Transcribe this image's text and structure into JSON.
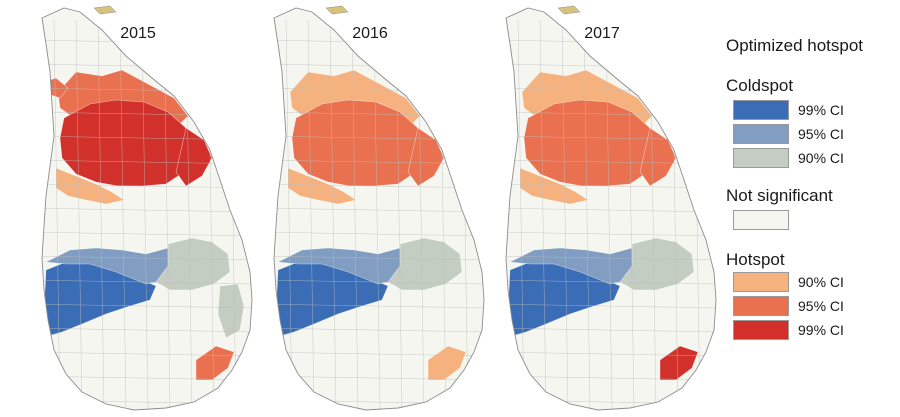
{
  "maps": [
    {
      "year": "2015",
      "regions": {
        "north_band": "hot95",
        "north_core": "hot99",
        "north_east": "hot99",
        "north_fringe": "hot90",
        "west_edge": "hot95",
        "central_west": "cold99",
        "central_mid": "cold95",
        "central_east": "cold90",
        "east_coast": "cold90",
        "southeast": "hot95"
      }
    },
    {
      "year": "2016",
      "regions": {
        "north_band": "hot90",
        "north_core": "hot95",
        "north_east": "hot95",
        "north_fringe": "hot90",
        "west_edge": "none",
        "central_west": "cold99",
        "central_mid": "cold95",
        "central_east": "cold90",
        "east_coast": "none",
        "southeast": "hot90"
      }
    },
    {
      "year": "2017",
      "regions": {
        "north_band": "hot90",
        "north_core": "hot95",
        "north_east": "hot95",
        "north_fringe": "hot90",
        "west_edge": "none",
        "central_west": "cold99",
        "central_mid": "cold95",
        "central_east": "cold90",
        "east_coast": "none",
        "southeast": "hot99"
      }
    }
  ],
  "legend": {
    "title": "Optimized hotspot",
    "coldspot": {
      "label": "Coldspot",
      "items": [
        {
          "key": "cold99",
          "label": "99% CI",
          "color": "#3a6db6"
        },
        {
          "key": "cold95",
          "label": "95% CI",
          "color": "#819dc1"
        },
        {
          "key": "cold90",
          "label": "90% CI",
          "color": "#c3cdc2"
        }
      ]
    },
    "not_significant": {
      "label": "Not significant",
      "key": "none",
      "color": "#f6f6f1"
    },
    "hotspot": {
      "label": "Hotspot",
      "items": [
        {
          "key": "hot90",
          "label": "90% CI",
          "color": "#f6b27e"
        },
        {
          "key": "hot95",
          "label": "95% CI",
          "color": "#ea7150"
        },
        {
          "key": "hot99",
          "label": "99% CI",
          "color": "#d1312a"
        }
      ]
    }
  }
}
